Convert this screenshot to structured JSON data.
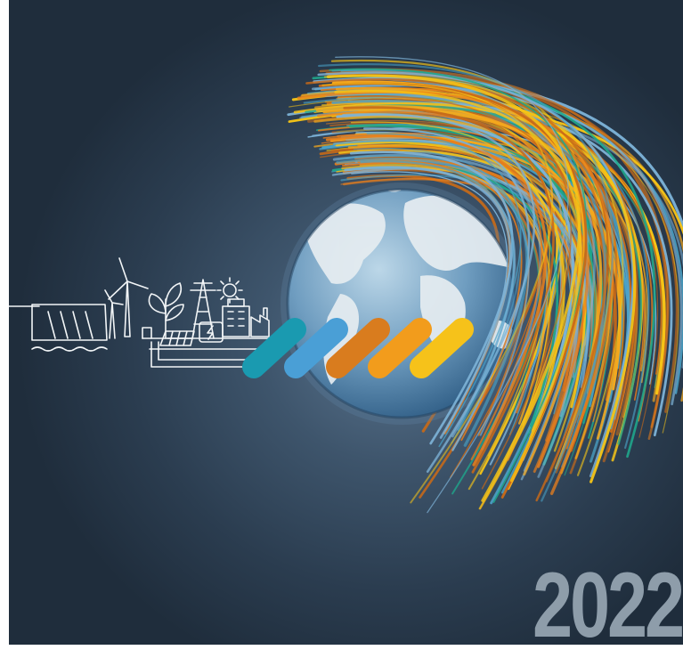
{
  "cover": {
    "year": "2022",
    "background_color": "#2b3d50",
    "stroke_palette": [
      "#e87e1c",
      "#f4a81d",
      "#f6c417",
      "#4aa3c8",
      "#7db2d6",
      "#1fa88c",
      "#c86a18"
    ],
    "pill_colors": [
      "#1a9ab0",
      "#4a9fd6",
      "#d97c1e",
      "#f29c1c",
      "#f6c21a"
    ],
    "icons": [
      "hydro-dam-icon",
      "wind-turbine-icon",
      "plant-leaf-icon",
      "power-pylon-icon",
      "sun-icon",
      "solar-panel-icon",
      "battery-icon",
      "building-icon",
      "factory-icon"
    ]
  }
}
